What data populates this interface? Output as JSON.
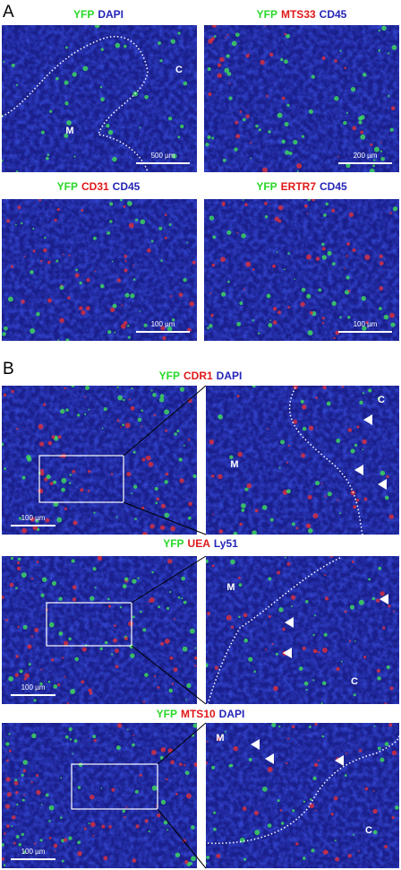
{
  "panel_a": {
    "label": "A",
    "images": [
      {
        "channels": [
          {
            "text": "YFP",
            "color": "#28d828"
          },
          {
            "text": "DAPI",
            "color": "#2424b8"
          }
        ],
        "regions": [
          "C",
          "M"
        ],
        "scale_bar": "500 µm"
      },
      {
        "channels": [
          {
            "text": "YFP",
            "color": "#28d828"
          },
          {
            "text": "MTS33",
            "color": "#e01818"
          },
          {
            "text": "CD45",
            "color": "#2424b8"
          }
        ],
        "regions": [],
        "scale_bar": "200 µm"
      },
      {
        "channels": [
          {
            "text": "YFP",
            "color": "#28d828"
          },
          {
            "text": "CD31",
            "color": "#e01818"
          },
          {
            "text": "CD45",
            "color": "#2424b8"
          }
        ],
        "regions": [],
        "scale_bar": "100 µm"
      },
      {
        "channels": [
          {
            "text": "YFP",
            "color": "#28d828"
          },
          {
            "text": "ERTR7",
            "color": "#e01818"
          },
          {
            "text": "CD45",
            "color": "#2424b8"
          }
        ],
        "regions": [],
        "scale_bar": "100 µm"
      }
    ]
  },
  "panel_b": {
    "label": "B",
    "rows": [
      {
        "channels": [
          {
            "text": "YFP",
            "color": "#28d828"
          },
          {
            "text": "CDR1",
            "color": "#e01818"
          },
          {
            "text": "DAPI",
            "color": "#2424b8"
          }
        ],
        "regions": [
          "M",
          "C"
        ],
        "scale_bar": "100 µm"
      },
      {
        "channels": [
          {
            "text": "YFP",
            "color": "#28d828"
          },
          {
            "text": "UEA",
            "color": "#e01818"
          },
          {
            "text": "Ly51",
            "color": "#2424b8"
          }
        ],
        "regions": [
          "M",
          "C"
        ],
        "scale_bar": "100 µm"
      },
      {
        "channels": [
          {
            "text": "YFP",
            "color": "#28d828"
          },
          {
            "text": "MTS10",
            "color": "#e01818"
          },
          {
            "text": "DAPI",
            "color": "#2424b8"
          }
        ],
        "regions": [
          "M",
          "C"
        ],
        "scale_bar": "100 µm"
      }
    ]
  }
}
